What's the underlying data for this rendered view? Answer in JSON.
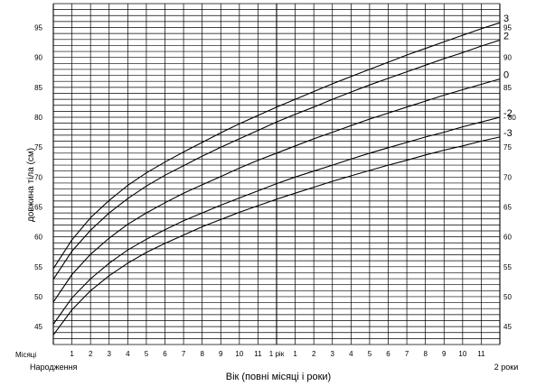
{
  "chart_data": {
    "type": "line",
    "title": "",
    "xlabel": "Вік (повні місяці і роки)",
    "ylabel": "довжина тіла (см)",
    "ylim": [
      42,
      99
    ],
    "xlim": [
      0,
      24
    ],
    "grid": true,
    "y_ticks": [
      45,
      50,
      55,
      60,
      65,
      70,
      75,
      80,
      85,
      90,
      95
    ],
    "x_axis_row_label": "Місяці",
    "x_ticks": [
      {
        "x": 1,
        "label": "1"
      },
      {
        "x": 2,
        "label": "2"
      },
      {
        "x": 3,
        "label": "3"
      },
      {
        "x": 4,
        "label": "4"
      },
      {
        "x": 5,
        "label": "5"
      },
      {
        "x": 6,
        "label": "6"
      },
      {
        "x": 7,
        "label": "7"
      },
      {
        "x": 8,
        "label": "8"
      },
      {
        "x": 9,
        "label": "9"
      },
      {
        "x": 10,
        "label": "10"
      },
      {
        "x": 11,
        "label": "11"
      },
      {
        "x": 12,
        "label": "1 рік"
      },
      {
        "x": 13,
        "label": "1"
      },
      {
        "x": 14,
        "label": "2"
      },
      {
        "x": 15,
        "label": "3"
      },
      {
        "x": 16,
        "label": "4"
      },
      {
        "x": 17,
        "label": "5"
      },
      {
        "x": 18,
        "label": "6"
      },
      {
        "x": 19,
        "label": "7"
      },
      {
        "x": 20,
        "label": "8"
      },
      {
        "x": 21,
        "label": "9"
      },
      {
        "x": 22,
        "label": "10"
      },
      {
        "x": 23,
        "label": "11"
      }
    ],
    "x_start_label": "Народження",
    "x_end_label": "2 роки",
    "x": [
      0,
      1,
      2,
      3,
      4,
      5,
      6,
      7,
      8,
      9,
      10,
      11,
      12,
      13,
      14,
      15,
      16,
      17,
      18,
      19,
      20,
      21,
      22,
      23,
      24
    ],
    "series": [
      {
        "name": "3",
        "values": [
          54.7,
          59.5,
          63.2,
          66.1,
          68.6,
          70.7,
          72.5,
          74.2,
          75.8,
          77.4,
          78.9,
          80.3,
          81.7,
          83.0,
          84.3,
          85.6,
          86.8,
          88.0,
          89.2,
          90.4,
          91.5,
          92.6,
          93.7,
          94.8,
          95.8
        ]
      },
      {
        "name": "2",
        "values": [
          52.9,
          57.6,
          61.1,
          64.0,
          66.4,
          68.5,
          70.3,
          71.9,
          73.5,
          75.0,
          76.4,
          77.8,
          79.2,
          80.5,
          81.7,
          83.0,
          84.2,
          85.4,
          86.5,
          87.6,
          88.7,
          89.8,
          90.8,
          91.9,
          92.9
        ]
      },
      {
        "name": "0",
        "values": [
          49.1,
          53.7,
          57.1,
          59.8,
          62.1,
          64.0,
          65.7,
          67.3,
          68.7,
          70.1,
          71.5,
          72.8,
          74.0,
          75.2,
          76.4,
          77.5,
          78.6,
          79.7,
          80.7,
          81.7,
          82.7,
          83.7,
          84.6,
          85.5,
          86.4
        ]
      },
      {
        "name": "-2",
        "values": [
          45.4,
          49.8,
          53.0,
          55.6,
          57.8,
          59.6,
          61.2,
          62.7,
          64.0,
          65.3,
          66.5,
          67.7,
          68.9,
          70.0,
          71.0,
          72.0,
          73.0,
          74.0,
          74.9,
          75.8,
          76.7,
          77.5,
          78.4,
          79.2,
          80.0
        ]
      },
      {
        "name": "-3",
        "values": [
          43.6,
          47.8,
          51.0,
          53.5,
          55.6,
          57.4,
          58.9,
          60.3,
          61.7,
          62.9,
          64.1,
          65.2,
          66.3,
          67.3,
          68.3,
          69.3,
          70.2,
          71.1,
          72.0,
          72.8,
          73.7,
          74.5,
          75.2,
          76.0,
          76.7
        ]
      }
    ],
    "right_axis_labels": [
      {
        "y": 45,
        "label": "45"
      },
      {
        "y": 50,
        "label": "50"
      },
      {
        "y": 55,
        "label": "55"
      },
      {
        "y": 60,
        "label": "60"
      },
      {
        "y": 65,
        "label": "65"
      },
      {
        "y": 70,
        "label": "70"
      },
      {
        "y": 75,
        "label": "75"
      },
      {
        "y": 80,
        "label": "- 80"
      },
      {
        "y": 85,
        "label": "85"
      },
      {
        "y": 90,
        "label": "90"
      },
      {
        "y": 95,
        "label": "95"
      }
    ]
  },
  "colors": {
    "grid": "#000000",
    "curve": "#000000",
    "background": "#ffffff"
  }
}
